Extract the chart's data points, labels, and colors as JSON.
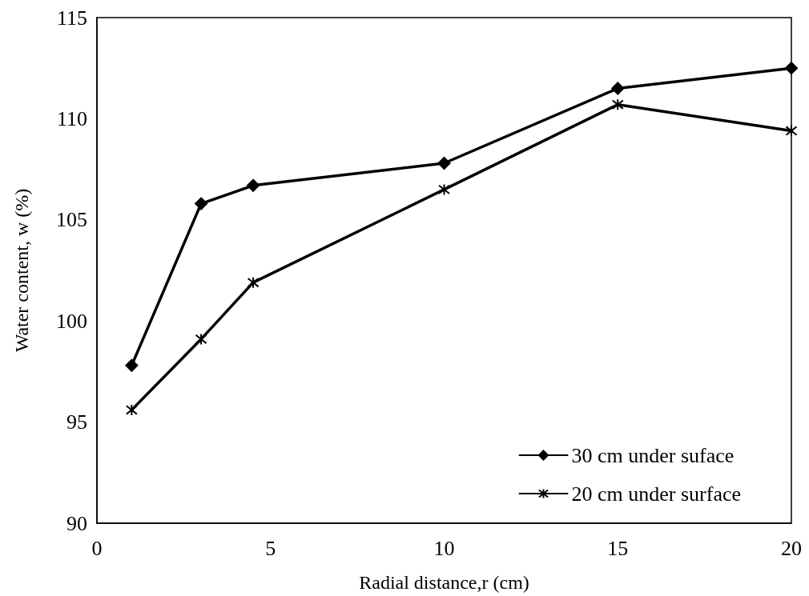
{
  "chart_data": {
    "type": "line",
    "xlabel": "Radial distance,r (cm)",
    "ylabel": "Water content, w (%)",
    "x": [
      1,
      3,
      4.5,
      10,
      15,
      20
    ],
    "series": [
      {
        "name": "30 cm under suface",
        "color": "#000000",
        "marker": "diamond",
        "values": [
          97.8,
          105.8,
          106.7,
          107.8,
          111.5,
          112.5
        ]
      },
      {
        "name": "20 cm under surface",
        "color": "#000000",
        "marker": "cross",
        "values": [
          95.6,
          99.1,
          101.9,
          106.5,
          110.7,
          109.4
        ]
      }
    ],
    "xlim": [
      0,
      20
    ],
    "xticks": [
      0,
      5,
      10,
      15,
      20
    ],
    "ylim": [
      90,
      115
    ],
    "yticks": [
      90,
      95,
      100,
      105,
      110,
      115
    ],
    "grid": false,
    "legend": "bottom right",
    "line_style": "solid"
  }
}
